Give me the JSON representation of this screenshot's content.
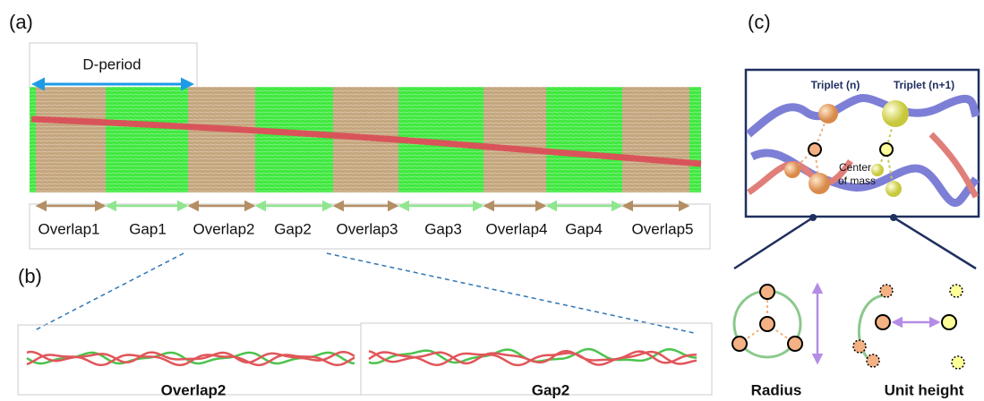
{
  "panel_a": {
    "label": "(a)",
    "d_period": "D-period",
    "segments": [
      "Overlap1",
      "Gap1",
      "Overlap2",
      "Gap2",
      "Overlap3",
      "Gap3",
      "Overlap4",
      "Gap4",
      "Overlap5"
    ]
  },
  "panel_b": {
    "label": "(b)",
    "captions": [
      "Overlap2",
      "Gap2"
    ]
  },
  "panel_c": {
    "label": "(c)",
    "triplet_left": "Triplet (n)",
    "triplet_right": "Triplet (n+1)",
    "center_of_mass": [
      "Center",
      "of mass"
    ],
    "captions": [
      "Radius",
      "Unit height"
    ]
  }
}
